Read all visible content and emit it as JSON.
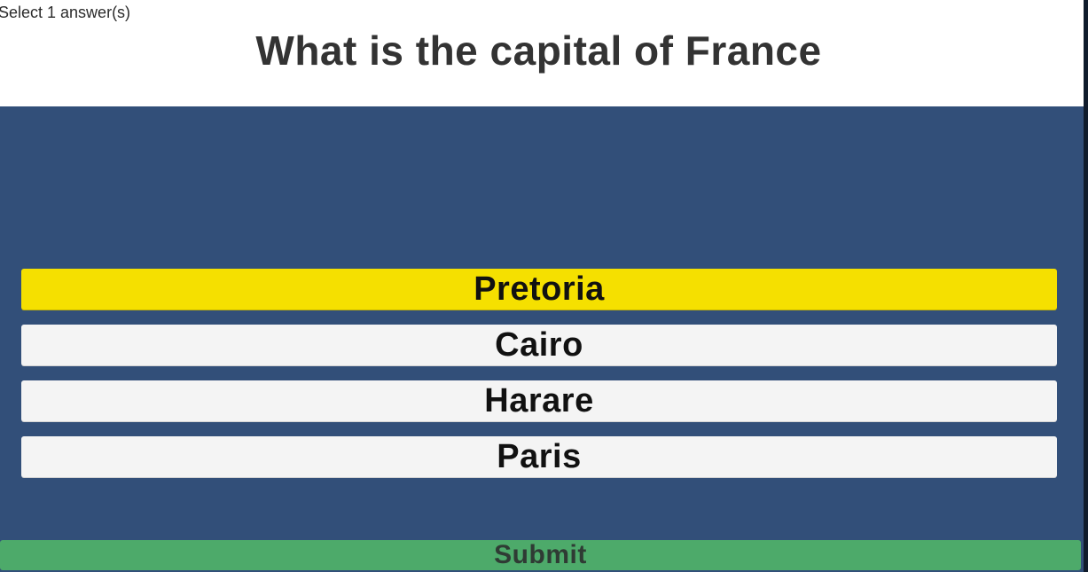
{
  "quiz": {
    "instruction": "Select 1 answer(s)",
    "question": "What is the capital of France",
    "answers": [
      {
        "label": "Pretoria",
        "selected": true
      },
      {
        "label": "Cairo",
        "selected": false
      },
      {
        "label": "Harare",
        "selected": false
      },
      {
        "label": "Paris",
        "selected": false
      }
    ],
    "submit_label": "Submit"
  },
  "colors": {
    "background": "#324f79",
    "header": "#ffffff",
    "answer_default": "#f4f4f4",
    "answer_selected": "#f5e000",
    "submit": "#4daa6a"
  }
}
